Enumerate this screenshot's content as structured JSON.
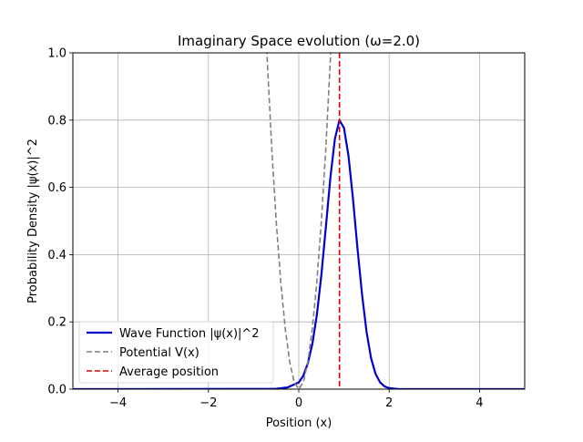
{
  "chart_data": {
    "type": "line",
    "title": "Imaginary Space evolution (ω=2.0)",
    "xlabel": "Position (x)",
    "ylabel": "Probability Density |ψ(x)|^2",
    "xlim": [
      -5,
      5
    ],
    "ylim": [
      0,
      1.0
    ],
    "grid": true,
    "legend_position": "lower-left",
    "xticks": [
      -4,
      -2,
      0,
      2,
      4
    ],
    "xtick_labels": [
      "−4",
      "−2",
      "0",
      "2",
      "4"
    ],
    "yticks": [
      0.0,
      0.2,
      0.4,
      0.6,
      0.8,
      1.0
    ],
    "ytick_labels": [
      "0.0",
      "0.2",
      "0.4",
      "0.6",
      "0.8",
      "1.0"
    ],
    "series": [
      {
        "name": "Wave Function |ψ(x)|^2",
        "color": "#0000cd",
        "style": "solid",
        "x": [
          -5.0,
          -0.5,
          -0.25,
          0.0,
          0.1,
          0.2,
          0.3,
          0.4,
          0.5,
          0.6,
          0.7,
          0.8,
          0.9,
          1.0,
          1.1,
          1.2,
          1.3,
          1.4,
          1.5,
          1.6,
          1.7,
          1.8,
          1.9,
          2.0,
          2.2,
          2.4,
          2.6,
          3.0,
          5.0
        ],
        "y": [
          0.0,
          0.001,
          0.005,
          0.02,
          0.04,
          0.077,
          0.134,
          0.221,
          0.34,
          0.483,
          0.63,
          0.745,
          0.8,
          0.777,
          0.694,
          0.565,
          0.417,
          0.282,
          0.17,
          0.092,
          0.045,
          0.02,
          0.008,
          0.003,
          0.0003,
          2e-05,
          0.0,
          0.0,
          0.0
        ]
      },
      {
        "name": "Potential V(x)",
        "color": "#808080",
        "style": "dashed",
        "x": [
          -0.72,
          -0.6,
          -0.5,
          -0.4,
          -0.3,
          -0.2,
          -0.1,
          0.0,
          0.1,
          0.2,
          0.3,
          0.4,
          0.5,
          0.6,
          0.72
        ],
        "y": [
          1.037,
          0.72,
          0.5,
          0.32,
          0.18,
          0.08,
          0.02,
          0.0,
          0.02,
          0.08,
          0.18,
          0.32,
          0.5,
          0.72,
          1.037
        ]
      },
      {
        "name": "Average position",
        "color": "#dd0000",
        "style": "dashed",
        "vline_x": 0.9
      }
    ]
  }
}
